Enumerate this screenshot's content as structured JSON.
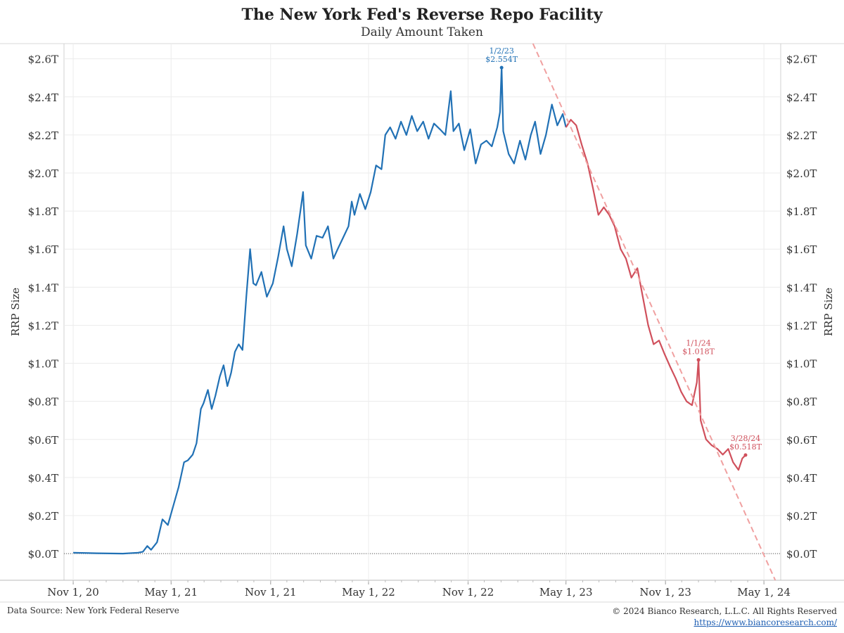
{
  "header": {
    "title": "The New York Fed's Reverse Repo Facility",
    "subtitle": "Daily Amount Taken"
  },
  "footer": {
    "source": "Data Source: New York Federal Reserve",
    "copyright": "© 2024 Bianco Research, L.L.C. All Rights Reserved",
    "url": "https://www.biancoresearch.com/"
  },
  "colors": {
    "pre_peak_series": "#2171b5",
    "post_peak_series": "#d0505c",
    "trend_line": "#f0a0a0"
  },
  "chart_data": {
    "type": "line",
    "title": "The New York Fed's Reverse Repo Facility",
    "subtitle": "Daily Amount Taken",
    "ylabel": "RRP Size",
    "ylabel_right": "RRP Size",
    "yunit": "$ trillions",
    "ylim": [
      -0.14,
      2.68
    ],
    "yticks": [
      0.0,
      0.2,
      0.4,
      0.6,
      0.8,
      1.0,
      1.2,
      1.4,
      1.6,
      1.8,
      2.0,
      2.2,
      2.4,
      2.6
    ],
    "ytick_labels": [
      "$0.0T",
      "$0.2T",
      "$0.4T",
      "$0.6T",
      "$0.8T",
      "$1.0T",
      "$1.2T",
      "$1.4T",
      "$1.6T",
      "$1.8T",
      "$2.0T",
      "$2.2T",
      "$2.4T",
      "$2.6T"
    ],
    "xlim": [
      "2020-10-15",
      "2024-06-01"
    ],
    "xticks": [
      "2020-11-01",
      "2021-05-01",
      "2021-11-01",
      "2022-05-01",
      "2022-11-01",
      "2023-05-01",
      "2023-11-01",
      "2024-05-01"
    ],
    "xtick_labels": [
      "Nov 1, 20",
      "May 1, 21",
      "Nov 1, 21",
      "May 1, 22",
      "Nov 1, 22",
      "May 1, 23",
      "Nov 1, 23",
      "May 1, 24"
    ],
    "grid": true,
    "zero_line": "dotted",
    "series": [
      {
        "color": "#2171b5",
        "x": [
          "2020-11-01",
          "2020-12-15",
          "2021-02-01",
          "2021-03-01",
          "2021-03-10",
          "2021-03-18",
          "2021-03-25",
          "2021-04-05",
          "2021-04-15",
          "2021-04-25",
          "2021-05-05",
          "2021-05-15",
          "2021-05-25",
          "2021-06-01",
          "2021-06-10",
          "2021-06-17",
          "2021-06-25",
          "2021-06-30",
          "2021-07-08",
          "2021-07-15",
          "2021-07-22",
          "2021-07-30",
          "2021-08-06",
          "2021-08-13",
          "2021-08-20",
          "2021-08-27",
          "2021-09-03",
          "2021-09-10",
          "2021-09-17",
          "2021-09-24",
          "2021-09-30",
          "2021-10-05",
          "2021-10-15",
          "2021-10-25",
          "2021-11-05",
          "2021-11-15",
          "2021-11-25",
          "2021-12-01",
          "2021-12-10",
          "2021-12-20",
          "2021-12-31",
          "2022-01-05",
          "2022-01-15",
          "2022-01-25",
          "2022-02-05",
          "2022-02-15",
          "2022-02-25",
          "2022-03-05",
          "2022-03-15",
          "2022-03-25",
          "2022-03-31",
          "2022-04-05",
          "2022-04-15",
          "2022-04-25",
          "2022-05-05",
          "2022-05-15",
          "2022-05-25",
          "2022-06-01",
          "2022-06-10",
          "2022-06-20",
          "2022-06-30",
          "2022-07-10",
          "2022-07-20",
          "2022-07-30",
          "2022-08-10",
          "2022-08-20",
          "2022-08-30",
          "2022-09-10",
          "2022-09-20",
          "2022-09-30",
          "2022-10-05",
          "2022-10-15",
          "2022-10-25",
          "2022-11-05",
          "2022-11-15",
          "2022-11-25",
          "2022-12-05",
          "2022-12-15",
          "2022-12-25",
          "2022-12-30",
          "2023-01-02",
          "2023-01-05",
          "2023-01-15",
          "2023-01-25",
          "2023-02-05",
          "2023-02-15",
          "2023-02-25",
          "2023-03-05",
          "2023-03-15",
          "2023-03-25",
          "2023-04-05",
          "2023-04-15",
          "2023-04-25",
          "2023-05-01"
        ],
        "values": [
          0.005,
          0.002,
          0.0,
          0.005,
          0.01,
          0.04,
          0.02,
          0.06,
          0.18,
          0.15,
          0.25,
          0.35,
          0.48,
          0.49,
          0.52,
          0.58,
          0.76,
          0.79,
          0.86,
          0.76,
          0.83,
          0.93,
          0.99,
          0.88,
          0.95,
          1.06,
          1.1,
          1.07,
          1.35,
          1.6,
          1.42,
          1.41,
          1.48,
          1.35,
          1.42,
          1.56,
          1.72,
          1.6,
          1.51,
          1.68,
          1.9,
          1.62,
          1.55,
          1.67,
          1.66,
          1.72,
          1.55,
          1.6,
          1.66,
          1.72,
          1.85,
          1.78,
          1.89,
          1.81,
          1.9,
          2.04,
          2.02,
          2.2,
          2.24,
          2.18,
          2.27,
          2.2,
          2.3,
          2.22,
          2.27,
          2.18,
          2.26,
          2.23,
          2.2,
          2.43,
          2.22,
          2.26,
          2.12,
          2.23,
          2.05,
          2.15,
          2.17,
          2.14,
          2.24,
          2.32,
          2.554,
          2.22,
          2.1,
          2.05,
          2.17,
          2.07,
          2.2,
          2.27,
          2.1,
          2.2,
          2.36,
          2.25,
          2.31,
          2.24
        ]
      },
      {
        "color": "#d0505c",
        "x": [
          "2023-05-01",
          "2023-05-10",
          "2023-05-20",
          "2023-05-30",
          "2023-06-10",
          "2023-06-20",
          "2023-06-30",
          "2023-07-10",
          "2023-07-20",
          "2023-07-30",
          "2023-08-10",
          "2023-08-20",
          "2023-08-30",
          "2023-09-10",
          "2023-09-20",
          "2023-09-30",
          "2023-10-10",
          "2023-10-20",
          "2023-10-30",
          "2023-11-10",
          "2023-11-20",
          "2023-11-30",
          "2023-12-10",
          "2023-12-20",
          "2023-12-29",
          "2024-01-01",
          "2024-01-05",
          "2024-01-15",
          "2024-01-25",
          "2024-02-05",
          "2024-02-15",
          "2024-02-25",
          "2024-03-05",
          "2024-03-15",
          "2024-03-22",
          "2024-03-28"
        ],
        "values": [
          2.24,
          2.28,
          2.25,
          2.15,
          2.05,
          1.92,
          1.78,
          1.82,
          1.78,
          1.72,
          1.6,
          1.55,
          1.45,
          1.5,
          1.35,
          1.2,
          1.1,
          1.12,
          1.05,
          0.98,
          0.92,
          0.85,
          0.8,
          0.78,
          0.9,
          1.018,
          0.7,
          0.6,
          0.57,
          0.55,
          0.52,
          0.55,
          0.48,
          0.44,
          0.5,
          0.518
        ]
      }
    ],
    "trend_line": {
      "style": "dashed",
      "color": "#f0a0a0",
      "x": [
        "2023-03-01",
        "2024-05-22"
      ],
      "values": [
        2.68,
        -0.14
      ]
    },
    "annotations": [
      {
        "x": "2023-01-02",
        "y": 2.554,
        "date_label": "1/2/23",
        "value_label": "$2.554T",
        "color": "#2171b5"
      },
      {
        "x": "2024-01-01",
        "y": 1.018,
        "date_label": "1/1/24",
        "value_label": "$1.018T",
        "color": "#d0505c"
      },
      {
        "x": "2024-03-28",
        "y": 0.518,
        "date_label": "3/28/24",
        "value_label": "$0.518T",
        "color": "#d0505c"
      }
    ]
  }
}
